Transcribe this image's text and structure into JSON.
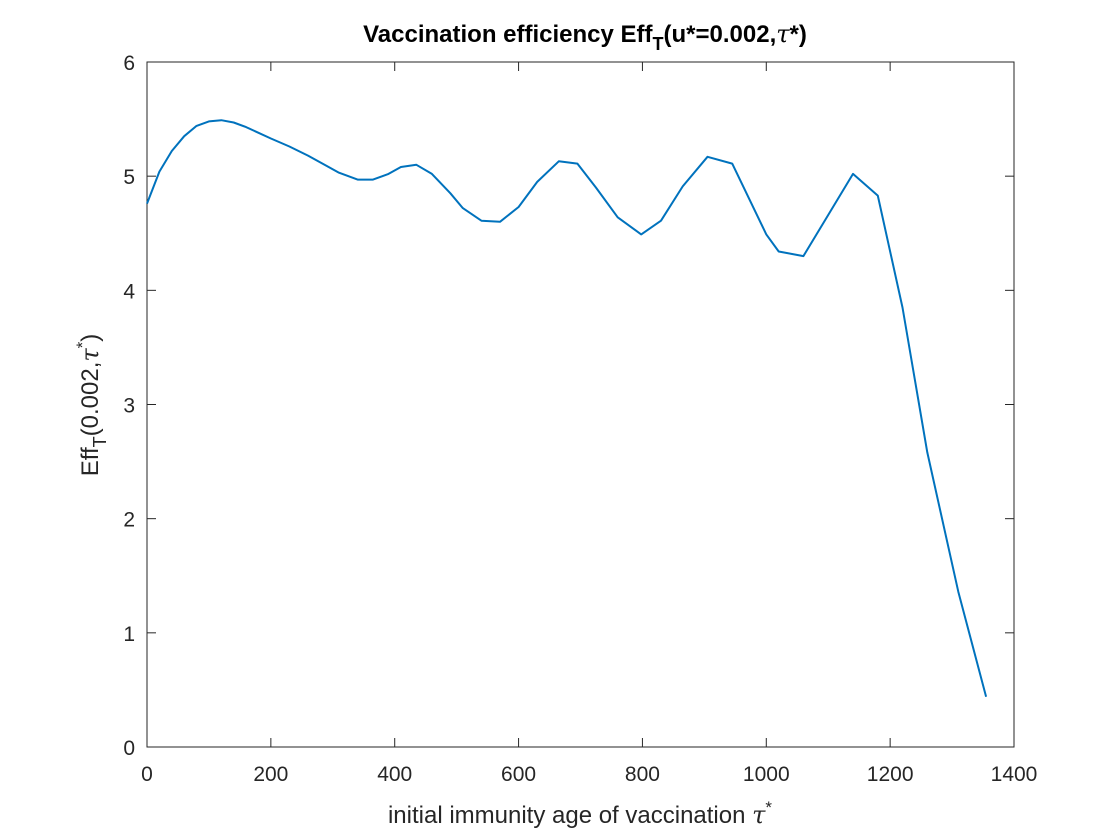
{
  "chart_data": {
    "type": "line",
    "title": {
      "main": "Vaccination efficiency Eff",
      "sub": "T",
      "tail": "(u*=0.002,",
      "tau": "τ",
      "end": "*)"
    },
    "xlabel": {
      "main": "initial immunity age of vaccination ",
      "tau": "τ",
      "star": "*"
    },
    "ylabel": {
      "main": "Eff",
      "sub": "T",
      "tail": "(0.002,",
      "tau": "τ",
      "star": "*",
      "end": ")"
    },
    "xlim": [
      0,
      1400
    ],
    "ylim": [
      0,
      6
    ],
    "xticks": [
      0,
      200,
      400,
      600,
      800,
      1000,
      1200,
      1400
    ],
    "yticks": [
      0,
      1,
      2,
      3,
      4,
      5,
      6
    ],
    "grid": false,
    "line_color": "#0072bd",
    "series": [
      {
        "x": [
          0,
          20,
          40,
          60,
          80,
          100,
          120,
          140,
          160,
          180,
          200,
          230,
          260,
          290,
          310,
          340,
          365,
          390,
          410,
          435,
          460,
          490,
          510,
          540,
          570,
          600,
          630,
          665,
          695,
          725,
          760,
          798,
          830,
          865,
          905,
          945,
          1000,
          1020,
          1060,
          1100,
          1140,
          1180,
          1220,
          1260,
          1310,
          1355
        ],
        "y": [
          4.76,
          5.04,
          5.22,
          5.35,
          5.44,
          5.48,
          5.49,
          5.47,
          5.43,
          5.38,
          5.33,
          5.26,
          5.18,
          5.09,
          5.03,
          4.97,
          4.97,
          5.02,
          5.08,
          5.1,
          5.02,
          4.85,
          4.72,
          4.61,
          4.6,
          4.73,
          4.95,
          5.13,
          5.11,
          4.9,
          4.64,
          4.49,
          4.61,
          4.91,
          5.17,
          5.11,
          4.49,
          4.34,
          4.3,
          4.66,
          5.02,
          4.83,
          3.85,
          2.58,
          1.36,
          0.44
        ]
      }
    ]
  }
}
